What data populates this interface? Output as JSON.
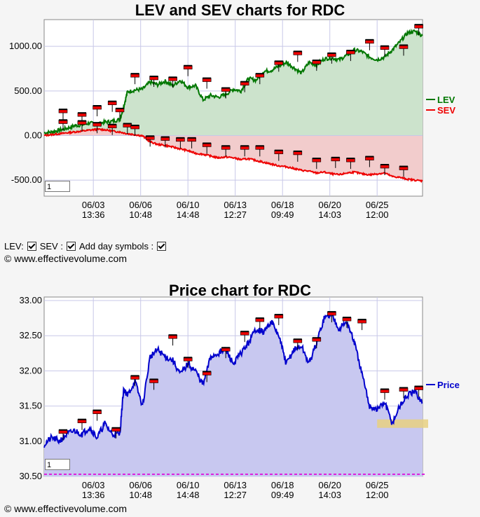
{
  "colors": {
    "lev": "#007700",
    "lev_fill": "#cce3cc",
    "sev": "#ee0000",
    "sev_fill": "#f2cccc",
    "price": "#0000cc",
    "price_fill": "#c8c8f0",
    "grid": "#c8c8e8",
    "support_line": "#dd22dd",
    "support_zone": "#e8d080",
    "marker_body": "#ee0000",
    "marker_cap": "#000000"
  },
  "copyright": "© www.effectivevolume.com",
  "controls": {
    "lev_label": "LEV:",
    "sev_label": "SEV :",
    "day_label": "Add day symbols :",
    "lev_checked": true,
    "sev_checked": true,
    "day_checked": true
  },
  "chart_data": [
    {
      "type": "area",
      "title": "LEV and SEV charts for RDC",
      "xlabel": "",
      "ylabel": "",
      "ylim": [
        -680,
        1300
      ],
      "yticks": [
        1000,
        500,
        0,
        -500
      ],
      "ytick_labels": [
        "1000.00",
        "500.00",
        "0.00",
        "-500.00"
      ],
      "x_tick_labels": [
        [
          "06/03",
          "13:36"
        ],
        [
          "06/06",
          "10:48"
        ],
        [
          "06/10",
          "14:48"
        ],
        [
          "06/13",
          "12:27"
        ],
        [
          "06/18",
          "09:49"
        ],
        [
          "06/20",
          "14:03"
        ],
        [
          "06/25",
          "12:00"
        ]
      ],
      "x_tick_positions": [
        0.13,
        0.255,
        0.38,
        0.505,
        0.63,
        0.755,
        0.88
      ],
      "legend_position": "right",
      "zoom_value": "1",
      "series": [
        {
          "name": "LEV",
          "x": [
            0,
            0.02,
            0.04,
            0.06,
            0.08,
            0.1,
            0.12,
            0.14,
            0.16,
            0.18,
            0.2,
            0.21,
            0.22,
            0.24,
            0.26,
            0.28,
            0.3,
            0.32,
            0.34,
            0.36,
            0.38,
            0.4,
            0.42,
            0.44,
            0.46,
            0.48,
            0.5,
            0.52,
            0.54,
            0.56,
            0.58,
            0.6,
            0.62,
            0.64,
            0.66,
            0.68,
            0.7,
            0.72,
            0.74,
            0.76,
            0.78,
            0.8,
            0.82,
            0.84,
            0.86,
            0.88,
            0.9,
            0.92,
            0.94,
            0.96,
            0.98,
            1.0
          ],
          "values": [
            30,
            40,
            60,
            80,
            110,
            120,
            140,
            130,
            150,
            160,
            180,
            320,
            490,
            510,
            520,
            600,
            570,
            610,
            560,
            620,
            540,
            560,
            400,
            450,
            430,
            460,
            520,
            500,
            640,
            620,
            720,
            730,
            780,
            820,
            760,
            700,
            820,
            790,
            860,
            870,
            850,
            900,
            960,
            940,
            880,
            850,
            880,
            960,
            1050,
            1150,
            1170,
            1120
          ]
        },
        {
          "name": "SEV",
          "x": [
            0,
            0.02,
            0.04,
            0.06,
            0.08,
            0.1,
            0.12,
            0.14,
            0.16,
            0.18,
            0.2,
            0.22,
            0.24,
            0.26,
            0.28,
            0.3,
            0.32,
            0.34,
            0.36,
            0.38,
            0.4,
            0.42,
            0.44,
            0.46,
            0.48,
            0.5,
            0.52,
            0.54,
            0.56,
            0.58,
            0.6,
            0.62,
            0.64,
            0.66,
            0.68,
            0.7,
            0.72,
            0.74,
            0.76,
            0.78,
            0.8,
            0.82,
            0.84,
            0.86,
            0.88,
            0.9,
            0.92,
            0.94,
            0.96,
            0.98,
            1.0
          ],
          "values": [
            0,
            10,
            20,
            30,
            40,
            50,
            60,
            70,
            65,
            50,
            40,
            20,
            10,
            -5,
            -70,
            -100,
            -110,
            -130,
            -150,
            -170,
            -200,
            -210,
            -230,
            -250,
            -240,
            -250,
            -270,
            -260,
            -280,
            -300,
            -320,
            -340,
            -350,
            -370,
            -390,
            -400,
            -420,
            -410,
            -430,
            -440,
            -420,
            -410,
            -430,
            -440,
            -430,
            -420,
            -460,
            -470,
            -490,
            -500,
            -510
          ]
        }
      ],
      "day_markers": {
        "LEV": [
          [
            0.05,
            150
          ],
          [
            0.05,
            270
          ],
          [
            0.1,
            230
          ],
          [
            0.1,
            140
          ],
          [
            0.14,
            310
          ],
          [
            0.18,
            360
          ],
          [
            0.2,
            280
          ],
          [
            0.24,
            670
          ],
          [
            0.29,
            640
          ],
          [
            0.34,
            630
          ],
          [
            0.38,
            760
          ],
          [
            0.43,
            620
          ],
          [
            0.48,
            510
          ],
          [
            0.53,
            580
          ],
          [
            0.57,
            670
          ],
          [
            0.62,
            810
          ],
          [
            0.67,
            920
          ],
          [
            0.72,
            820
          ],
          [
            0.76,
            900
          ],
          [
            0.81,
            930
          ],
          [
            0.86,
            1050
          ],
          [
            0.9,
            980
          ],
          [
            0.95,
            990
          ],
          [
            0.99,
            1220
          ]
        ],
        "SEV": [
          [
            0.05,
            150
          ],
          [
            0.1,
            140
          ],
          [
            0.14,
            120
          ],
          [
            0.18,
            100
          ],
          [
            0.22,
            110
          ],
          [
            0.24,
            90
          ],
          [
            0.28,
            -30
          ],
          [
            0.32,
            -40
          ],
          [
            0.36,
            -50
          ],
          [
            0.39,
            -50
          ],
          [
            0.43,
            -110
          ],
          [
            0.48,
            -140
          ],
          [
            0.53,
            -140
          ],
          [
            0.57,
            -140
          ],
          [
            0.62,
            -190
          ],
          [
            0.67,
            -200
          ],
          [
            0.72,
            -280
          ],
          [
            0.77,
            -270
          ],
          [
            0.81,
            -280
          ],
          [
            0.86,
            -260
          ],
          [
            0.9,
            -350
          ],
          [
            0.95,
            -370
          ]
        ]
      }
    },
    {
      "type": "area",
      "title": "Price chart for RDC",
      "xlabel": "",
      "ylabel": "",
      "ylim": [
        30.5,
        33.05
      ],
      "yticks": [
        33.0,
        32.5,
        32.0,
        31.5,
        31.0,
        30.5
      ],
      "ytick_labels": [
        "33.00",
        "32.50",
        "32.00",
        "31.50",
        "31.00",
        "30.50"
      ],
      "x_tick_labels": [
        [
          "06/03",
          "13:36"
        ],
        [
          "06/06",
          "10:48"
        ],
        [
          "06/10",
          "14:48"
        ],
        [
          "06/13",
          "12:27"
        ],
        [
          "06/18",
          "09:49"
        ],
        [
          "06/20",
          "14:03"
        ],
        [
          "06/25",
          "12:00"
        ]
      ],
      "x_tick_positions": [
        0.13,
        0.255,
        0.38,
        0.505,
        0.63,
        0.755,
        0.88
      ],
      "legend_position": "right",
      "zoom_value": "1",
      "support_line": 30.53,
      "support_zone": [
        31.19,
        31.31
      ],
      "series": [
        {
          "name": "Price",
          "x": [
            0,
            0.02,
            0.04,
            0.06,
            0.08,
            0.1,
            0.12,
            0.14,
            0.16,
            0.18,
            0.2,
            0.21,
            0.22,
            0.24,
            0.26,
            0.28,
            0.3,
            0.32,
            0.34,
            0.36,
            0.38,
            0.4,
            0.42,
            0.44,
            0.46,
            0.48,
            0.5,
            0.52,
            0.54,
            0.56,
            0.58,
            0.6,
            0.62,
            0.64,
            0.66,
            0.68,
            0.7,
            0.72,
            0.74,
            0.76,
            0.78,
            0.8,
            0.82,
            0.84,
            0.86,
            0.88,
            0.9,
            0.92,
            0.94,
            0.96,
            0.98,
            1.0
          ],
          "values": [
            30.95,
            31.05,
            31.0,
            31.1,
            31.15,
            31.1,
            31.2,
            31.05,
            31.25,
            31.1,
            31.1,
            31.75,
            31.65,
            31.85,
            31.5,
            32.2,
            32.3,
            32.2,
            32.15,
            31.95,
            32.1,
            32.0,
            31.8,
            32.2,
            32.25,
            32.3,
            32.1,
            32.25,
            32.4,
            32.6,
            32.55,
            32.7,
            32.5,
            32.1,
            32.3,
            32.35,
            32.1,
            32.4,
            32.75,
            32.8,
            32.6,
            32.7,
            32.4,
            31.95,
            31.5,
            31.45,
            31.55,
            31.25,
            31.5,
            31.65,
            31.7,
            31.55
          ]
        }
      ],
      "day_markers": {
        "Price": [
          [
            0.05,
            31.13
          ],
          [
            0.1,
            31.28
          ],
          [
            0.14,
            31.41
          ],
          [
            0.19,
            31.16
          ],
          [
            0.24,
            31.9
          ],
          [
            0.29,
            31.85
          ],
          [
            0.34,
            32.48
          ],
          [
            0.38,
            32.16
          ],
          [
            0.43,
            31.96
          ],
          [
            0.48,
            32.3
          ],
          [
            0.53,
            32.53
          ],
          [
            0.57,
            32.72
          ],
          [
            0.62,
            32.77
          ],
          [
            0.67,
            32.42
          ],
          [
            0.72,
            32.44
          ],
          [
            0.76,
            32.81
          ],
          [
            0.8,
            32.73
          ],
          [
            0.84,
            32.7
          ],
          [
            0.9,
            31.71
          ],
          [
            0.95,
            31.73
          ],
          [
            0.99,
            31.75
          ]
        ]
      }
    }
  ]
}
